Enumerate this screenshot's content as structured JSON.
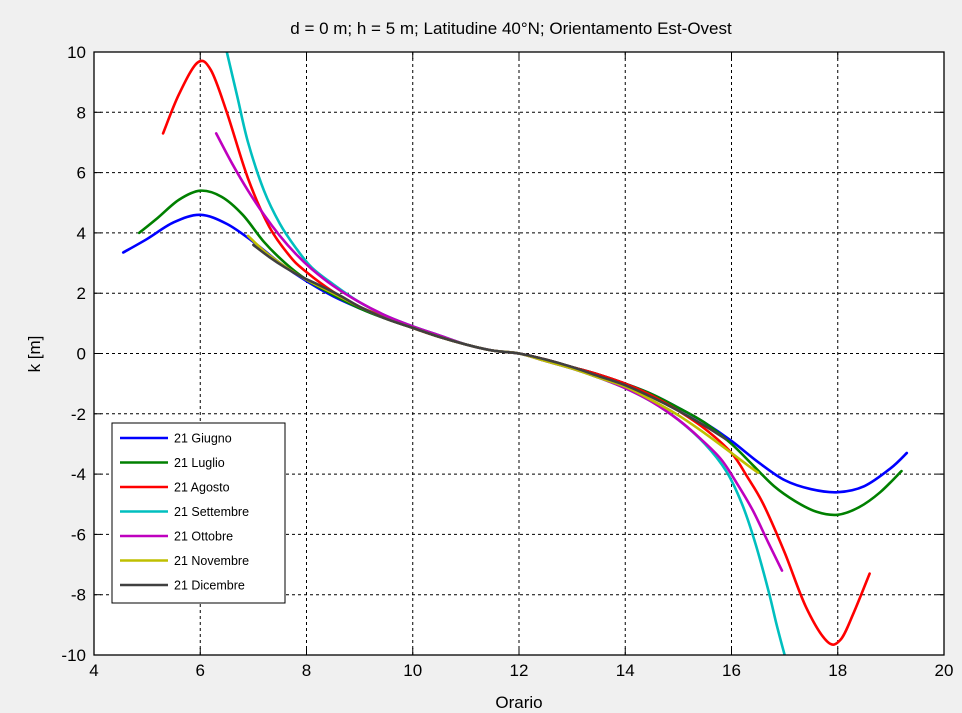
{
  "chart_data": {
    "type": "line",
    "title": "d = 0 m; h = 5 m; Latitudine 40°N; Orientamento Est-Ovest",
    "xlabel": "Orario",
    "ylabel": "k [m]",
    "xlim": [
      4,
      20
    ],
    "ylim": [
      -10,
      10
    ],
    "xticks": [
      4,
      6,
      8,
      10,
      12,
      14,
      16,
      18,
      20
    ],
    "yticks": [
      -10,
      -8,
      -6,
      -4,
      -2,
      0,
      2,
      4,
      6,
      8,
      10
    ],
    "grid": true,
    "legend_position": "bottom-left",
    "series": [
      {
        "name": "21 Giugno",
        "color": "#0000ff",
        "x": [
          4.55,
          5.0,
          5.5,
          6.0,
          6.5,
          7.0,
          7.5,
          8,
          8.5,
          9,
          9.5,
          10,
          10.5,
          11,
          11.5,
          12,
          12.5,
          13,
          13.5,
          14,
          14.5,
          15,
          15.5,
          16,
          16.5,
          17,
          17.5,
          18,
          18.5,
          19,
          19.3
        ],
        "y": [
          3.35,
          3.8,
          4.35,
          4.6,
          4.3,
          3.7,
          3.0,
          2.4,
          1.9,
          1.5,
          1.15,
          0.85,
          0.55,
          0.3,
          0.1,
          0.0,
          -0.2,
          -0.45,
          -0.7,
          -1.0,
          -1.35,
          -1.8,
          -2.3,
          -2.9,
          -3.6,
          -4.2,
          -4.5,
          -4.6,
          -4.4,
          -3.8,
          -3.3
        ]
      },
      {
        "name": "21 Luglio",
        "color": "#008000",
        "x": [
          4.85,
          5.2,
          5.6,
          6.0,
          6.4,
          6.8,
          7.2,
          7.6,
          8,
          8.5,
          9,
          9.5,
          10,
          10.5,
          11,
          11.5,
          12,
          12.5,
          13,
          13.5,
          14,
          14.5,
          15,
          15.5,
          16,
          16.4,
          16.8,
          17.2,
          17.6,
          18,
          18.4,
          18.8,
          19.2
        ],
        "y": [
          4.0,
          4.5,
          5.1,
          5.4,
          5.2,
          4.6,
          3.7,
          3.0,
          2.45,
          1.95,
          1.5,
          1.15,
          0.85,
          0.55,
          0.3,
          0.1,
          0.0,
          -0.2,
          -0.45,
          -0.7,
          -1.0,
          -1.35,
          -1.8,
          -2.3,
          -3.0,
          -3.7,
          -4.4,
          -4.9,
          -5.25,
          -5.35,
          -5.1,
          -4.6,
          -3.9
        ]
      },
      {
        "name": "21 Agosto",
        "color": "#ff0000",
        "x": [
          5.3,
          5.6,
          5.95,
          6.2,
          6.5,
          6.9,
          7.3,
          7.7,
          8,
          8.5,
          9,
          9.5,
          10,
          10.5,
          11,
          11.5,
          12,
          12.5,
          13,
          13.5,
          14,
          14.5,
          15,
          15.5,
          16,
          16.3,
          16.6,
          17,
          17.4,
          17.8,
          18.05,
          18.3,
          18.6
        ],
        "y": [
          7.3,
          8.6,
          9.65,
          9.4,
          8.0,
          5.8,
          4.2,
          3.2,
          2.7,
          2.05,
          1.55,
          1.2,
          0.85,
          0.55,
          0.3,
          0.1,
          0.0,
          -0.2,
          -0.45,
          -0.7,
          -1.0,
          -1.4,
          -1.9,
          -2.5,
          -3.3,
          -4.1,
          -5.0,
          -6.6,
          -8.4,
          -9.55,
          -9.5,
          -8.6,
          -7.3
        ]
      },
      {
        "name": "21 Settembre",
        "color": "#00bfbf",
        "x": [
          6.5,
          6.7,
          6.9,
          7.2,
          7.5,
          7.8,
          8.1,
          8.5,
          9,
          9.5,
          10,
          10.5,
          11,
          11.5,
          12,
          12.5,
          13,
          13.5,
          14,
          14.5,
          15,
          15.5,
          15.9,
          16.2,
          16.45,
          16.7,
          16.85,
          17.0
        ],
        "y": [
          10.0,
          8.5,
          7.0,
          5.4,
          4.3,
          3.5,
          2.85,
          2.3,
          1.7,
          1.25,
          0.9,
          0.6,
          0.3,
          0.1,
          0.0,
          -0.25,
          -0.5,
          -0.8,
          -1.15,
          -1.6,
          -2.2,
          -3.0,
          -3.9,
          -5.0,
          -6.3,
          -7.9,
          -9.0,
          -10.0
        ]
      },
      {
        "name": "21 Ottobre",
        "color": "#bf00bf",
        "x": [
          6.3,
          6.6,
          6.9,
          7.2,
          7.5,
          7.8,
          8.1,
          8.5,
          9,
          9.5,
          10,
          10.5,
          11,
          11.5,
          12,
          12.5,
          13,
          13.5,
          14,
          14.5,
          15,
          15.4,
          15.8,
          16.1,
          16.4,
          16.7,
          16.95
        ],
        "y": [
          7.3,
          6.3,
          5.4,
          4.6,
          3.9,
          3.3,
          2.8,
          2.25,
          1.7,
          1.25,
          0.9,
          0.6,
          0.3,
          0.1,
          0.0,
          -0.25,
          -0.5,
          -0.8,
          -1.15,
          -1.6,
          -2.2,
          -2.8,
          -3.5,
          -4.3,
          -5.2,
          -6.3,
          -7.2
        ]
      },
      {
        "name": "21 Novembre",
        "color": "#bfbf00",
        "x": [
          6.9,
          7.2,
          7.5,
          7.8,
          8.1,
          8.5,
          9,
          9.5,
          10,
          10.5,
          11,
          11.5,
          12,
          12.5,
          13,
          13.5,
          14,
          14.5,
          15,
          15.5,
          16,
          16.3,
          16.5
        ],
        "y": [
          3.9,
          3.4,
          3.0,
          2.65,
          2.35,
          2.0,
          1.55,
          1.15,
          0.85,
          0.55,
          0.3,
          0.1,
          0.0,
          -0.25,
          -0.5,
          -0.8,
          -1.1,
          -1.55,
          -2.05,
          -2.65,
          -3.3,
          -3.7,
          -3.95
        ]
      },
      {
        "name": "21 Dicembre",
        "color": "#404040",
        "x": [
          7.0,
          7.3,
          7.6,
          7.9,
          8.2,
          8.6,
          9,
          9.5,
          10,
          10.5,
          11,
          11.5,
          12,
          12.5,
          13,
          13.5,
          14,
          14.5,
          15,
          15.5,
          15.9
        ],
        "y": [
          3.6,
          3.2,
          2.85,
          2.55,
          2.3,
          1.95,
          1.55,
          1.15,
          0.85,
          0.55,
          0.3,
          0.1,
          0.0,
          -0.2,
          -0.45,
          -0.75,
          -1.05,
          -1.45,
          -1.9,
          -2.4,
          -2.85
        ]
      }
    ]
  }
}
